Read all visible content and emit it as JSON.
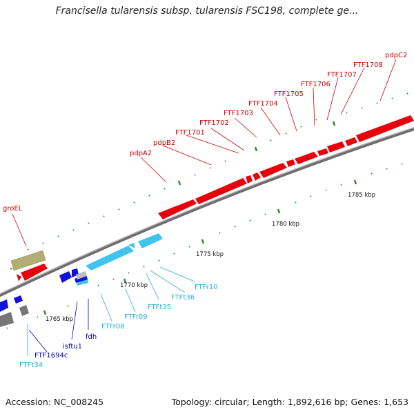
{
  "title": "Francisella tularensis subsp. tularensis FSC198, complete ge...",
  "footer": {
    "accession": "Accession: NC_008245",
    "stats": "Topology: circular; Length: 1,892,616 bp; Genes: 1,653"
  },
  "ticks": [
    "1765 kbp",
    "1770 kbp",
    "1775 kbp",
    "1780 kbp",
    "1785 kbp"
  ],
  "labels": {
    "groEL": "groEL",
    "pdpA2": "pdpA2",
    "pdpB2": "pdpB2",
    "ftf1701": "FTF1701",
    "ftf1702": "FTF1702",
    "ftf1703": "FTF1703",
    "ftf1704": "FTF1704",
    "ftf1705": "FTF1705",
    "ftf1706": "FTF1706",
    "ftf1707": "FTF1707",
    "ftf1708": "FTF1708",
    "pdpC2": "pdpC2",
    "ftfr10": "FTFr10",
    "ftft36": "FTFt36",
    "ftft35": "FTFt35",
    "ftfr09": "FTFr09",
    "ftfr08": "FTFr08",
    "fdh": "fdh",
    "isftu1": "isftu1",
    "ftf1694c": "FTF1694c",
    "ftft34": "FTFt34"
  },
  "colors": {
    "red": "#e8000b",
    "cyan": "#3fc4ee",
    "blue": "#1010e0",
    "olive": "#b2ad70",
    "gray": "#777777",
    "backbone": "#8c8c8c",
    "tick": "#2e8b2e",
    "redLabel": "#cc0000",
    "cyanLabel": "#22aadd",
    "blueLabel": "#000099"
  }
}
